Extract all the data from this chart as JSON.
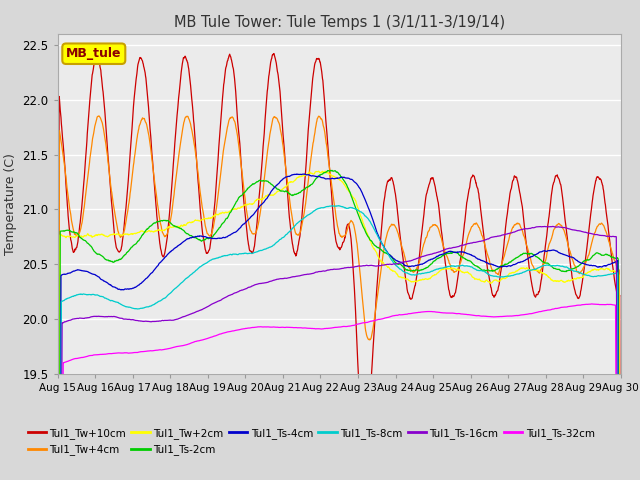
{
  "title": "MB Tule Tower: Tule Temps 1 (3/1/11-3/19/14)",
  "ylabel": "Temperature (C)",
  "ylim": [
    19.5,
    22.6
  ],
  "yticks": [
    19.5,
    20.0,
    20.5,
    21.0,
    21.5,
    22.0,
    22.5
  ],
  "xlim": [
    0,
    15.0
  ],
  "x_labels": [
    "Aug 15",
    "Aug 16",
    "Aug 17",
    "Aug 18",
    "Aug 19",
    "Aug 20",
    "Aug 21",
    "Aug 22",
    "Aug 23",
    "Aug 24",
    "Aug 25",
    "Aug 26",
    "Aug 27",
    "Aug 28",
    "Aug 29",
    "Aug 30"
  ],
  "plot_bg_color": "#ebebeb",
  "fig_bg_color": "#d8d8d8",
  "legend_box_fill": "#ffff00",
  "legend_box_edge": "#c8a000",
  "series": [
    {
      "label": "Tul1_Tw+10cm",
      "color": "#cc0000"
    },
    {
      "label": "Tul1_Tw+4cm",
      "color": "#ff8800"
    },
    {
      "label": "Tul1_Tw+2cm",
      "color": "#ffff00"
    },
    {
      "label": "Tul1_Ts-2cm",
      "color": "#00cc00"
    },
    {
      "label": "Tul1_Ts-4cm",
      "color": "#0000cc"
    },
    {
      "label": "Tul1_Ts-8cm",
      "color": "#00cccc"
    },
    {
      "label": "Tul1_Ts-16cm",
      "color": "#8800cc"
    },
    {
      "label": "Tul1_Ts-32cm",
      "color": "#ff00ff"
    }
  ]
}
